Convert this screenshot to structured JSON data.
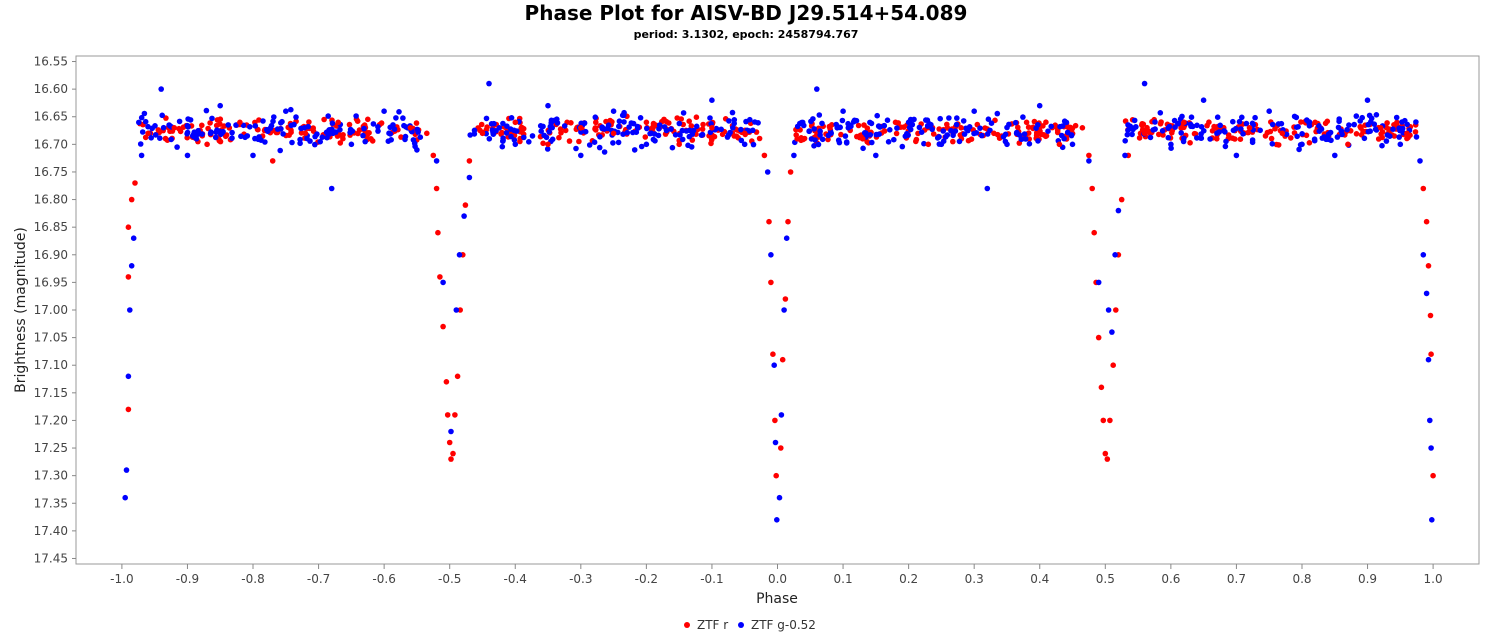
{
  "chart_data": {
    "type": "scatter",
    "title": "Phase Plot for AISV-BD J29.514+54.089",
    "subtitle": "period: 3.1302, epoch: 2458794.767",
    "xlabel": "Phase",
    "ylabel": "Brightness (magnitude)",
    "xlim": [
      -1.07,
      1.07
    ],
    "ylim": [
      17.46,
      16.54
    ],
    "y_inverted": true,
    "grid": false,
    "legend_position": "bottom-center",
    "x_ticks": [
      -1.0,
      -0.9,
      -0.8,
      -0.7,
      -0.6,
      -0.5,
      -0.4,
      -0.3,
      -0.2,
      -0.1,
      0.0,
      0.1,
      0.2,
      0.3,
      0.4,
      0.5,
      0.6,
      0.7,
      0.8,
      0.9,
      1.0
    ],
    "x_tick_labels": [
      "-1.0",
      "-0.9",
      "-0.8",
      "-0.7",
      "-0.6",
      "-0.5",
      "-0.4",
      "-0.3",
      "-0.2",
      "-0.1",
      "0.0",
      "0.1",
      "0.2",
      "0.3",
      "0.4",
      "0.5",
      "0.6",
      "0.7",
      "0.8",
      "0.9",
      "1.0"
    ],
    "y_ticks": [
      16.55,
      16.6,
      16.65,
      16.7,
      16.75,
      16.8,
      16.85,
      16.9,
      16.95,
      17.0,
      17.05,
      17.1,
      17.15,
      17.2,
      17.25,
      17.3,
      17.35,
      17.4,
      17.45
    ],
    "y_tick_labels": [
      "16.55",
      "16.60",
      "16.65",
      "16.70",
      "16.75",
      "16.80",
      "16.85",
      "16.90",
      "16.95",
      "17.00",
      "17.05",
      "17.10",
      "17.15",
      "17.20",
      "17.25",
      "17.30",
      "17.35",
      "17.40",
      "17.45"
    ],
    "series": [
      {
        "name": "ZTF r",
        "color": "#ff0000",
        "points": [
          [
            -0.99,
            16.85
          ],
          [
            -0.99,
            16.94
          ],
          [
            -0.99,
            17.18
          ],
          [
            -0.985,
            16.8
          ],
          [
            -0.98,
            16.77
          ],
          [
            -0.96,
            16.68
          ],
          [
            -0.92,
            16.67
          ],
          [
            -0.87,
            16.7
          ],
          [
            -0.82,
            16.66
          ],
          [
            -0.77,
            16.73
          ],
          [
            -0.72,
            16.68
          ],
          [
            -0.67,
            16.66
          ],
          [
            -0.62,
            16.69
          ],
          [
            -0.56,
            16.67
          ],
          [
            -0.535,
            16.68
          ],
          [
            -0.525,
            16.72
          ],
          [
            -0.52,
            16.78
          ],
          [
            -0.518,
            16.86
          ],
          [
            -0.515,
            16.94
          ],
          [
            -0.51,
            17.03
          ],
          [
            -0.505,
            17.13
          ],
          [
            -0.503,
            17.19
          ],
          [
            -0.5,
            17.24
          ],
          [
            -0.498,
            17.27
          ],
          [
            -0.495,
            17.26
          ],
          [
            -0.492,
            17.19
          ],
          [
            -0.488,
            17.12
          ],
          [
            -0.484,
            17.0
          ],
          [
            -0.48,
            16.9
          ],
          [
            -0.476,
            16.81
          ],
          [
            -0.47,
            16.73
          ],
          [
            -0.45,
            16.68
          ],
          [
            -0.4,
            16.66
          ],
          [
            -0.35,
            16.7
          ],
          [
            -0.3,
            16.67
          ],
          [
            -0.25,
            16.68
          ],
          [
            -0.2,
            16.66
          ],
          [
            -0.15,
            16.7
          ],
          [
            -0.1,
            16.67
          ],
          [
            -0.05,
            16.68
          ],
          [
            -0.02,
            16.72
          ],
          [
            -0.013,
            16.84
          ],
          [
            -0.01,
            16.95
          ],
          [
            -0.007,
            17.08
          ],
          [
            -0.004,
            17.2
          ],
          [
            -0.002,
            17.3
          ],
          [
            0.005,
            17.25
          ],
          [
            0.008,
            17.09
          ],
          [
            0.012,
            16.98
          ],
          [
            0.016,
            16.84
          ],
          [
            0.02,
            16.75
          ],
          [
            0.03,
            16.69
          ],
          [
            0.08,
            16.67
          ],
          [
            0.13,
            16.69
          ],
          [
            0.18,
            16.66
          ],
          [
            0.23,
            16.7
          ],
          [
            0.28,
            16.67
          ],
          [
            0.33,
            16.68
          ],
          [
            0.38,
            16.66
          ],
          [
            0.43,
            16.7
          ],
          [
            0.465,
            16.67
          ],
          [
            0.475,
            16.72
          ],
          [
            0.48,
            16.78
          ],
          [
            0.483,
            16.86
          ],
          [
            0.486,
            16.95
          ],
          [
            0.49,
            17.05
          ],
          [
            0.494,
            17.14
          ],
          [
            0.497,
            17.2
          ],
          [
            0.5,
            17.26
          ],
          [
            0.503,
            17.27
          ],
          [
            0.507,
            17.2
          ],
          [
            0.512,
            17.1
          ],
          [
            0.516,
            17.0
          ],
          [
            0.52,
            16.9
          ],
          [
            0.525,
            16.8
          ],
          [
            0.535,
            16.72
          ],
          [
            0.56,
            16.68
          ],
          [
            0.62,
            16.66
          ],
          [
            0.67,
            16.69
          ],
          [
            0.72,
            16.67
          ],
          [
            0.77,
            16.68
          ],
          [
            0.82,
            16.66
          ],
          [
            0.87,
            16.7
          ],
          [
            0.92,
            16.67
          ],
          [
            0.96,
            16.68
          ],
          [
            0.985,
            16.78
          ],
          [
            0.99,
            16.84
          ],
          [
            0.993,
            16.92
          ],
          [
            0.996,
            17.01
          ],
          [
            0.997,
            17.08
          ],
          [
            1.0,
            17.3
          ]
        ]
      },
      {
        "name": "ZTF g-0.52",
        "color": "#0000ff",
        "points": [
          [
            -0.995,
            17.34
          ],
          [
            -0.993,
            17.29
          ],
          [
            -0.99,
            17.12
          ],
          [
            -0.988,
            17.0
          ],
          [
            -0.985,
            16.92
          ],
          [
            -0.982,
            16.87
          ],
          [
            -0.97,
            16.72
          ],
          [
            -0.94,
            16.6
          ],
          [
            -0.9,
            16.72
          ],
          [
            -0.85,
            16.63
          ],
          [
            -0.8,
            16.72
          ],
          [
            -0.75,
            16.64
          ],
          [
            -0.68,
            16.78
          ],
          [
            -0.65,
            16.7
          ],
          [
            -0.6,
            16.64
          ],
          [
            -0.55,
            16.71
          ],
          [
            -0.52,
            16.73
          ],
          [
            -0.51,
            16.95
          ],
          [
            -0.498,
            17.22
          ],
          [
            -0.49,
            17.0
          ],
          [
            -0.485,
            16.9
          ],
          [
            -0.478,
            16.83
          ],
          [
            -0.47,
            16.76
          ],
          [
            -0.44,
            16.59
          ],
          [
            -0.4,
            16.7
          ],
          [
            -0.35,
            16.63
          ],
          [
            -0.3,
            16.72
          ],
          [
            -0.25,
            16.64
          ],
          [
            -0.2,
            16.7
          ],
          [
            -0.1,
            16.62
          ],
          [
            -0.05,
            16.7
          ],
          [
            -0.015,
            16.75
          ],
          [
            -0.01,
            16.9
          ],
          [
            -0.005,
            17.1
          ],
          [
            -0.003,
            17.24
          ],
          [
            -0.001,
            17.38
          ],
          [
            0.003,
            17.34
          ],
          [
            0.006,
            17.19
          ],
          [
            0.01,
            17.0
          ],
          [
            0.014,
            16.87
          ],
          [
            0.025,
            16.72
          ],
          [
            0.06,
            16.6
          ],
          [
            0.1,
            16.64
          ],
          [
            0.15,
            16.72
          ],
          [
            0.2,
            16.66
          ],
          [
            0.25,
            16.7
          ],
          [
            0.3,
            16.64
          ],
          [
            0.32,
            16.78
          ],
          [
            0.35,
            16.7
          ],
          [
            0.4,
            16.63
          ],
          [
            0.45,
            16.7
          ],
          [
            0.475,
            16.73
          ],
          [
            0.49,
            16.95
          ],
          [
            0.505,
            17.0
          ],
          [
            0.51,
            17.04
          ],
          [
            0.515,
            16.9
          ],
          [
            0.52,
            16.82
          ],
          [
            0.53,
            16.72
          ],
          [
            0.56,
            16.59
          ],
          [
            0.6,
            16.7
          ],
          [
            0.65,
            16.62
          ],
          [
            0.7,
            16.72
          ],
          [
            0.75,
            16.64
          ],
          [
            0.8,
            16.7
          ],
          [
            0.85,
            16.72
          ],
          [
            0.9,
            16.62
          ],
          [
            0.95,
            16.7
          ],
          [
            0.98,
            16.73
          ],
          [
            0.985,
            16.9
          ],
          [
            0.99,
            16.97
          ],
          [
            0.993,
            17.09
          ],
          [
            0.995,
            17.2
          ],
          [
            0.997,
            17.25
          ],
          [
            0.998,
            17.38
          ]
        ]
      }
    ],
    "dense_bands": [
      {
        "series": 0,
        "x_from": -0.975,
        "x_to": -0.54,
        "y_center": 16.675,
        "y_spread": 0.03
      },
      {
        "series": 1,
        "x_from": -0.975,
        "x_to": -0.54,
        "y_center": 16.675,
        "y_spread": 0.045
      },
      {
        "series": 0,
        "x_from": -0.47,
        "x_to": -0.025,
        "y_center": 16.675,
        "y_spread": 0.03
      },
      {
        "series": 1,
        "x_from": -0.47,
        "x_to": -0.025,
        "y_center": 16.675,
        "y_spread": 0.045
      },
      {
        "series": 0,
        "x_from": 0.025,
        "x_to": 0.46,
        "y_center": 16.675,
        "y_spread": 0.03
      },
      {
        "series": 1,
        "x_from": 0.025,
        "x_to": 0.46,
        "y_center": 16.675,
        "y_spread": 0.045
      },
      {
        "series": 0,
        "x_from": 0.53,
        "x_to": 0.975,
        "y_center": 16.675,
        "y_spread": 0.03
      },
      {
        "series": 1,
        "x_from": 0.53,
        "x_to": 0.975,
        "y_center": 16.675,
        "y_spread": 0.045
      }
    ]
  }
}
